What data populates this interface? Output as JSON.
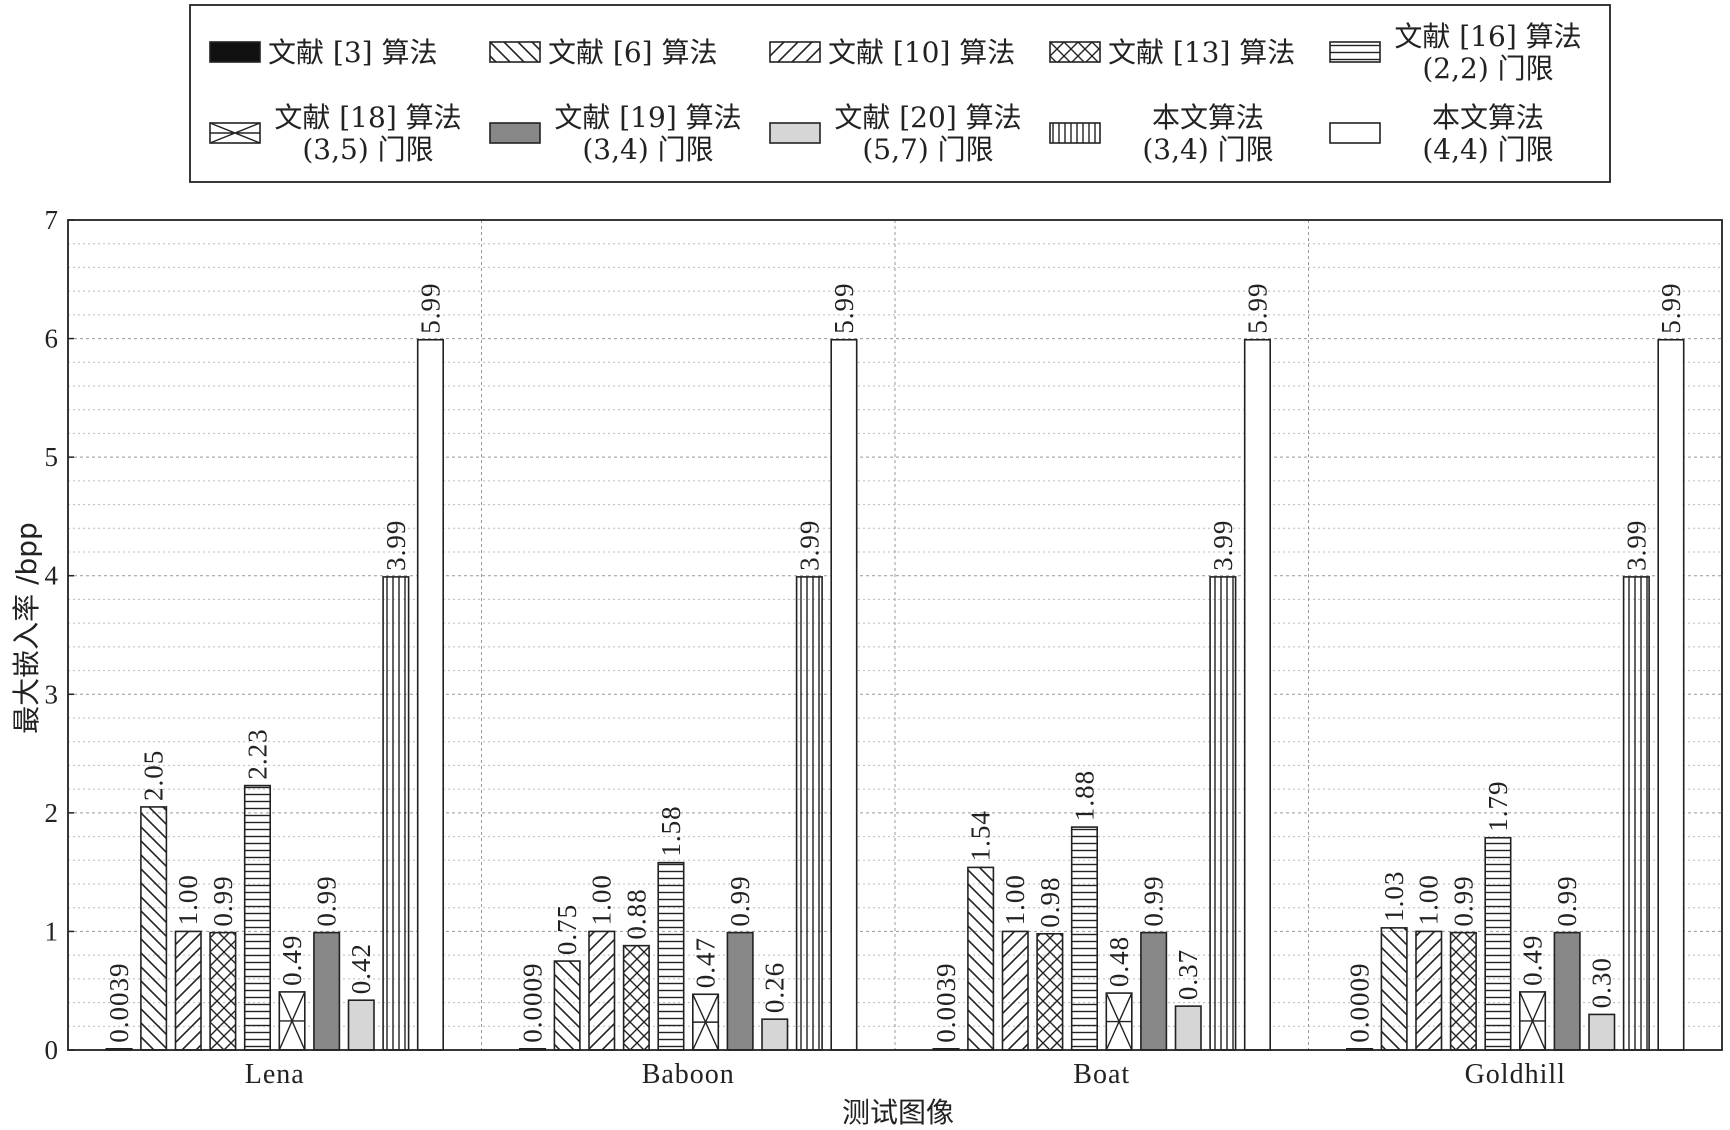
{
  "chart_data": {
    "type": "bar",
    "xlabel": "测试图像",
    "ylabel": "最大嵌入率 /bpp",
    "ylim": [
      0,
      7
    ],
    "y_ticks": [
      "0",
      "1",
      "2",
      "3",
      "4",
      "5",
      "6",
      "7"
    ],
    "grid": true,
    "legend_position": "top",
    "categories": [
      "Lena",
      "Baboon",
      "Boat",
      "Goldhill"
    ],
    "series": [
      {
        "name": "文献 [3] 算法",
        "name2": "",
        "pattern": "solid-black",
        "values": [
          0.0039,
          0.0009,
          0.0039,
          0.0009
        ],
        "labels": [
          "0.0039",
          "0.0009",
          "0.0039",
          "0.0009"
        ]
      },
      {
        "name": "文献 [6] 算法",
        "name2": "",
        "pattern": "back-diagonal",
        "values": [
          2.05,
          0.75,
          1.54,
          1.03
        ],
        "labels": [
          "2.05",
          "0.75",
          "1.54",
          "1.03"
        ]
      },
      {
        "name": "文献 [10] 算法",
        "name2": "",
        "pattern": "forward-diagonal",
        "values": [
          1.0,
          1.0,
          1.0,
          1.0
        ],
        "labels": [
          "1.00",
          "1.00",
          "1.00",
          "1.00"
        ]
      },
      {
        "name": "文献 [13] 算法",
        "name2": "",
        "pattern": "cross-hatch",
        "values": [
          0.99,
          0.88,
          0.98,
          0.99
        ],
        "labels": [
          "0.99",
          "0.88",
          "0.98",
          "0.99"
        ]
      },
      {
        "name": "文献 [16] 算法",
        "name2": "(2,2) 门限",
        "pattern": "horizontal",
        "values": [
          2.23,
          1.58,
          1.88,
          1.79
        ],
        "labels": [
          "2.23",
          "1.58",
          "1.88",
          "1.79"
        ]
      },
      {
        "name": "文献 [18] 算法",
        "name2": "(3,5) 门限",
        "pattern": "hourglass",
        "values": [
          0.49,
          0.47,
          0.48,
          0.49
        ],
        "labels": [
          "0.49",
          "0.47",
          "0.48",
          "0.49"
        ]
      },
      {
        "name": "文献 [19] 算法",
        "name2": "(3,4) 门限",
        "pattern": "dark-gray",
        "values": [
          0.99,
          0.99,
          0.99,
          0.99
        ],
        "labels": [
          "0.99",
          "0.99",
          "0.99",
          "0.99"
        ]
      },
      {
        "name": "文献 [20] 算法",
        "name2": "(5,7) 门限",
        "pattern": "light-gray",
        "values": [
          0.42,
          0.26,
          0.37,
          0.3
        ],
        "labels": [
          "0.42",
          "0.26",
          "0.37",
          "0.30"
        ]
      },
      {
        "name": "本文算法",
        "name2": "(3,4) 门限",
        "pattern": "vertical",
        "values": [
          3.99,
          3.99,
          3.99,
          3.99
        ],
        "labels": [
          "3.99",
          "3.99",
          "3.99",
          "3.99"
        ]
      },
      {
        "name": "本文算法",
        "name2": "(4,4) 门限",
        "pattern": "white",
        "values": [
          5.99,
          5.99,
          5.99,
          5.99
        ],
        "labels": [
          "5.99",
          "5.99",
          "5.99",
          "5.99"
        ]
      }
    ]
  }
}
